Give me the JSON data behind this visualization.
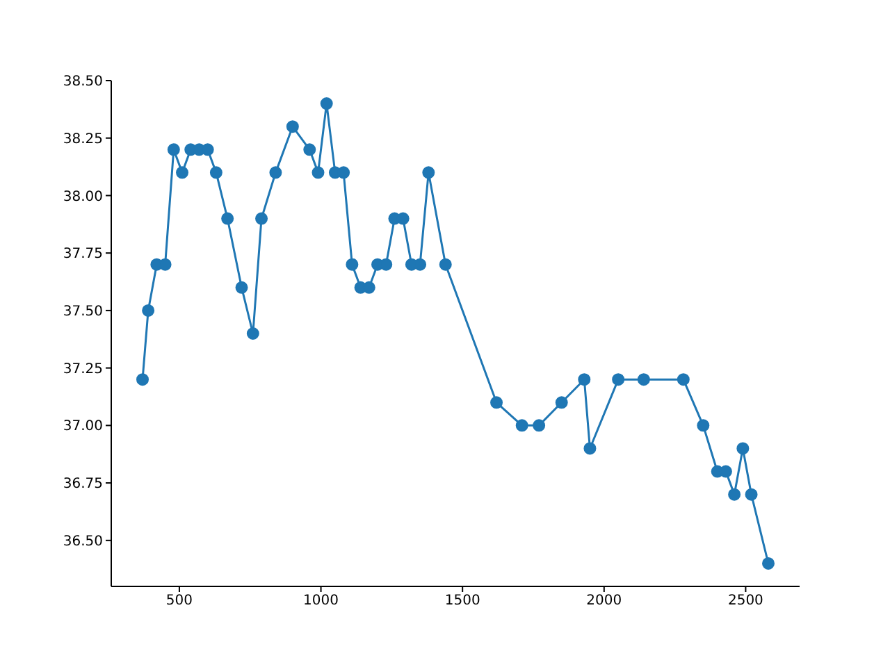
{
  "chart_data": {
    "type": "line",
    "marker": "circle",
    "color": "#1f77b4",
    "x": [
      370,
      390,
      420,
      450,
      480,
      510,
      540,
      570,
      600,
      630,
      670,
      720,
      760,
      790,
      840,
      900,
      960,
      990,
      1020,
      1050,
      1080,
      1110,
      1140,
      1170,
      1200,
      1230,
      1260,
      1290,
      1320,
      1350,
      1380,
      1440,
      1620,
      1710,
      1770,
      1850,
      1930,
      1950,
      2050,
      2140,
      2280,
      2350,
      2400,
      2430,
      2460,
      2490,
      2520,
      2580
    ],
    "values": [
      37.2,
      37.5,
      37.7,
      37.7,
      38.2,
      38.1,
      38.2,
      38.2,
      38.2,
      38.1,
      37.9,
      37.6,
      37.4,
      37.9,
      38.1,
      38.3,
      38.2,
      38.1,
      38.4,
      38.1,
      38.1,
      37.7,
      37.6,
      37.6,
      37.7,
      37.7,
      37.9,
      37.9,
      37.7,
      37.7,
      38.1,
      37.7,
      37.1,
      37.0,
      37.0,
      37.1,
      37.2,
      36.9,
      37.2,
      37.2,
      37.2,
      37.0,
      36.8,
      36.8,
      36.7,
      36.9,
      36.7,
      36.4
    ],
    "xlim": [
      259.5,
      2690.5
    ],
    "xticks": [
      500,
      1000,
      1500,
      2000,
      2500
    ],
    "ylim": [
      36.3,
      38.5
    ],
    "yticks": [
      {
        "value": 36.5,
        "label": "36.50"
      },
      {
        "value": 36.75,
        "label": "36.75"
      },
      {
        "value": 37,
        "label": "37.00"
      },
      {
        "value": 37.25,
        "label": "37.25"
      },
      {
        "value": 37.5,
        "label": "37.50"
      },
      {
        "value": 37.75,
        "label": "37.75"
      },
      {
        "value": 38,
        "label": "38.00"
      },
      {
        "value": 38.25,
        "label": "38.25"
      },
      {
        "value": 38.5,
        "label": "38.50"
      }
    ]
  }
}
